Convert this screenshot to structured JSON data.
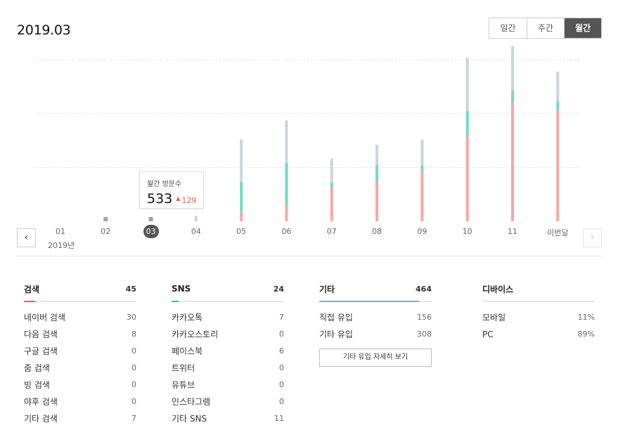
{
  "header": {
    "title": "2019.03"
  },
  "period_tabs": [
    {
      "label": "일간",
      "active": false
    },
    {
      "label": "주간",
      "active": false
    },
    {
      "label": "월간",
      "active": true
    }
  ],
  "chart_data": {
    "type": "bar",
    "stacked": true,
    "categories": [
      "01",
      "02",
      "03",
      "04",
      "05",
      "06",
      "07",
      "08",
      "09",
      "10",
      "11",
      "이번달"
    ],
    "year_label": "2019년",
    "active_category": "03",
    "colors": {
      "search": "#f7a89f",
      "sns": "#6fdcc6",
      "other": "#cfd3da",
      "small": "#9aa5b1"
    },
    "series": [
      {
        "name": "검색",
        "values": [
          0,
          0,
          0,
          0,
          45,
          75,
          160,
          190,
          240,
          400,
          560,
          520
        ]
      },
      {
        "name": "SNS",
        "values": [
          0,
          0,
          0,
          0,
          140,
          200,
          25,
          75,
          25,
          120,
          55,
          45
        ]
      },
      {
        "name": "기타",
        "values": [
          0,
          0,
          0,
          25,
          200,
          200,
          110,
          95,
          120,
          250,
          210,
          140
        ]
      }
    ],
    "small_markers": {
      "02": 20,
      "03": 20
    },
    "ylim": [
      0,
      800
    ],
    "grid": true
  },
  "tooltip": {
    "title": "월간 방문수",
    "value": "533",
    "arrow": "▲",
    "delta": "129"
  },
  "nav": {
    "prev": "‹",
    "next": "›"
  },
  "stats": {
    "search": {
      "title": "검색",
      "total": "45",
      "rows": [
        {
          "label": "네이버 검색",
          "value": "30"
        },
        {
          "label": "다음 검색",
          "value": "8"
        },
        {
          "label": "구글 검색",
          "value": "0"
        },
        {
          "label": "줌 검색",
          "value": "0"
        },
        {
          "label": "빙 검색",
          "value": "0"
        },
        {
          "label": "야후 검색",
          "value": "0"
        },
        {
          "label": "기타 검색",
          "value": "7"
        }
      ],
      "accent": "#f05a4d"
    },
    "sns": {
      "title": "SNS",
      "total": "24",
      "rows": [
        {
          "label": "카카오톡",
          "value": "7"
        },
        {
          "label": "카카오스토리",
          "value": "0"
        },
        {
          "label": "페이스북",
          "value": "6"
        },
        {
          "label": "트위터",
          "value": "0"
        },
        {
          "label": "유튜브",
          "value": "0"
        },
        {
          "label": "인스타그램",
          "value": "0"
        },
        {
          "label": "기타 SNS",
          "value": "11"
        }
      ],
      "accent": "#2dc3a8"
    },
    "other": {
      "title": "기타",
      "total": "464",
      "rows": [
        {
          "label": "직접 유입",
          "value": "156"
        },
        {
          "label": "기타 유입",
          "value": "308"
        }
      ],
      "button": "기타 유입 자세히 보기",
      "accent": "#9aa5b1"
    },
    "device": {
      "title": "디바이스",
      "rows": [
        {
          "label": "모바일",
          "value": "11%"
        },
        {
          "label": "PC",
          "value": "89%"
        }
      ]
    }
  }
}
